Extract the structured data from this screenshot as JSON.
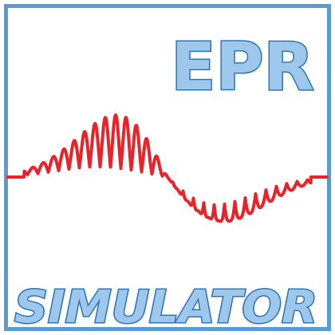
{
  "logo": {
    "title": "EPR",
    "subtitle": "SIMULATOR"
  },
  "colors": {
    "frame": "#5b9bd5",
    "text_fill": "#9dc8ec",
    "text_stroke": "#2e75b6",
    "signal": "#e8232a",
    "background": "#ffffff"
  },
  "icons": {
    "signal": "epr-spectrum-waveform-icon"
  }
}
